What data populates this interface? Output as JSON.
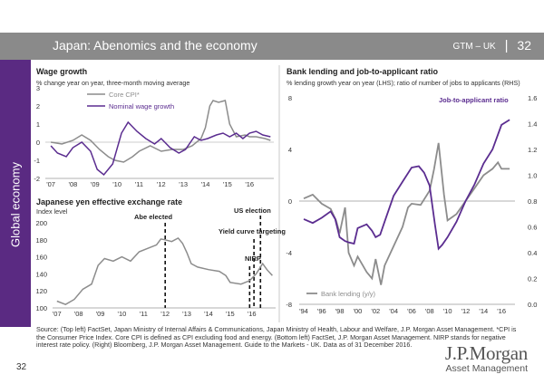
{
  "header": {
    "title": "Japan: Abenomics and the economy",
    "code": "GTM – UK",
    "separator": "|",
    "slide_number": "32"
  },
  "sidebar": {
    "label": "Global economy"
  },
  "footnote": "Source: (Top left) FactSet, Japan Ministry of Internal Affairs & Communications, Japan Ministry of Health, Labour and Welfare, J.P. Morgan Asset Management. *CPI is the Consumer Price Index. Core CPI is defined as CPI excluding food and energy. (Bottom left) FactSet, J.P. Morgan Asset Management. NIRP stands for negative interest rate policy. (Right) Bloomberg, J.P. Morgan Asset Management. Guide to the Markets - UK. Data as of 31 December 2016.",
  "page_number": "32",
  "logo": {
    "main": "J.P.Morgan",
    "sub": "Asset Management"
  },
  "colors": {
    "header": "#8a8a8a",
    "sidebar": "#5a2a82",
    "purple": "#5b2d90",
    "gray": "#8c8c8c"
  },
  "chart_data": [
    {
      "id": "wage",
      "type": "line",
      "title": "Wage growth",
      "subtitle": "% change year on year, three-month moving average",
      "xlim": [
        2006.75,
        2017.1
      ],
      "ylim": [
        -2,
        3
      ],
      "x_ticks": [
        2007,
        2008,
        2009,
        2010,
        2011,
        2012,
        2013,
        2014,
        2015,
        2016
      ],
      "x_tick_labels": [
        "'07",
        "'08",
        "'09",
        "'10",
        "'11",
        "'12",
        "'13",
        "'14",
        "'15",
        "'16"
      ],
      "y_ticks": [
        -2,
        -1,
        0,
        1,
        2,
        3
      ],
      "legend_position": "top-left",
      "series": [
        {
          "name": "Core CPI*",
          "color": "#8c8c8c",
          "x": [
            2007.0,
            2007.5,
            2008.0,
            2008.4,
            2008.8,
            2009.2,
            2009.6,
            2009.9,
            2010.3,
            2010.7,
            2011.0,
            2011.5,
            2012.0,
            2012.5,
            2013.0,
            2013.4,
            2013.8,
            2014.0,
            2014.2,
            2014.35,
            2014.6,
            2014.9,
            2015.1,
            2015.4,
            2015.8,
            2016.0,
            2016.3,
            2016.7,
            2016.95
          ],
          "y": [
            0.0,
            -0.1,
            0.1,
            0.4,
            0.1,
            -0.4,
            -0.8,
            -1.0,
            -1.1,
            -0.8,
            -0.5,
            -0.2,
            -0.5,
            -0.4,
            -0.4,
            -0.2,
            0.2,
            0.8,
            2.0,
            2.3,
            2.2,
            2.3,
            1.0,
            0.3,
            0.4,
            0.3,
            0.3,
            0.2,
            0.1
          ]
        },
        {
          "name": "Nominal wage growth",
          "color": "#5b2d90",
          "x": [
            2007.0,
            2007.3,
            2007.7,
            2008.0,
            2008.4,
            2008.8,
            2009.1,
            2009.4,
            2009.8,
            2010.2,
            2010.5,
            2010.9,
            2011.3,
            2011.7,
            2012.0,
            2012.4,
            2012.8,
            2013.1,
            2013.5,
            2013.8,
            2014.1,
            2014.5,
            2014.8,
            2015.1,
            2015.4,
            2015.7,
            2016.0,
            2016.3,
            2016.6,
            2016.95
          ],
          "y": [
            -0.2,
            -0.6,
            -0.8,
            -0.3,
            0.0,
            -0.5,
            -1.5,
            -1.8,
            -1.2,
            0.5,
            1.1,
            0.6,
            0.2,
            -0.1,
            0.2,
            -0.3,
            -0.6,
            -0.4,
            0.3,
            0.1,
            0.2,
            0.4,
            0.5,
            0.3,
            0.5,
            0.2,
            0.5,
            0.6,
            0.4,
            0.3
          ]
        }
      ]
    },
    {
      "id": "yen",
      "type": "line",
      "title": "Japanese yen effective exchange rate",
      "subtitle": "Index level",
      "xlim": [
        2006.8,
        2017.1
      ],
      "ylim": [
        100,
        200
      ],
      "x_ticks": [
        2007,
        2008,
        2009,
        2010,
        2011,
        2012,
        2013,
        2014,
        2015,
        2016
      ],
      "x_tick_labels": [
        "'07",
        "'08",
        "'09",
        "'10",
        "'11",
        "'12",
        "'13",
        "'14",
        "'15",
        "'16"
      ],
      "y_ticks": [
        100,
        120,
        140,
        160,
        180,
        200
      ],
      "annotations": [
        {
          "x": 2012.0,
          "label": "Abe elected"
        },
        {
          "x": 2016.1,
          "label": "Yield curve targeting"
        },
        {
          "x": 2016.4,
          "label": "US election"
        },
        {
          "x": 2015.9,
          "label": "NIRP"
        }
      ],
      "series": [
        {
          "name": "Japanese yen effective exchange rate",
          "color": "#8c8c8c",
          "x": [
            2007.0,
            2007.4,
            2007.8,
            2008.2,
            2008.6,
            2008.9,
            2009.2,
            2009.6,
            2010.0,
            2010.4,
            2010.8,
            2011.2,
            2011.6,
            2011.8,
            2012.0,
            2012.3,
            2012.6,
            2012.8,
            2013.0,
            2013.2,
            2013.5,
            2014.0,
            2014.5,
            2014.8,
            2015.0,
            2015.5,
            2015.9,
            2016.2,
            2016.5,
            2016.7,
            2016.95
          ],
          "y": [
            108,
            104,
            110,
            122,
            128,
            150,
            158,
            155,
            160,
            155,
            166,
            170,
            174,
            181,
            180,
            178,
            182,
            176,
            165,
            152,
            148,
            145,
            143,
            138,
            130,
            128,
            132,
            140,
            152,
            145,
            138
          ]
        }
      ]
    },
    {
      "id": "bank",
      "type": "line",
      "title": "Bank lending and job-to-applicant ratio",
      "subtitle": "% lending growth year on year (LHS); ratio of number of jobs to applicants (RHS)",
      "xlim": [
        1993.5,
        2017.5
      ],
      "ylim_left": [
        -8,
        8
      ],
      "ylim_right": [
        0.0,
        1.6
      ],
      "x_ticks": [
        1994,
        1996,
        1998,
        2000,
        2002,
        2004,
        2006,
        2008,
        2010,
        2012,
        2014,
        2016
      ],
      "x_tick_labels": [
        "'94",
        "'96",
        "'98",
        "'00",
        "'02",
        "'04",
        "'06",
        "'08",
        "'10",
        "'12",
        "'14",
        "'16"
      ],
      "y_ticks_left": [
        -8,
        -4,
        0,
        4,
        8
      ],
      "y_ticks_right": [
        0.0,
        0.2,
        0.4,
        0.6,
        0.8,
        1.0,
        1.2,
        1.4,
        1.6
      ],
      "series": [
        {
          "name": "Bank lending (y/y)",
          "axis": "left",
          "color": "#8c8c8c",
          "x": [
            1994.0,
            1995.0,
            1996.0,
            1997.0,
            1997.6,
            1998.0,
            1998.6,
            1999.0,
            1999.6,
            2000.0,
            2001.0,
            2001.6,
            2002.0,
            2002.6,
            2003.0,
            2004.0,
            2005.0,
            2005.6,
            2006.0,
            2007.0,
            2008.0,
            2008.5,
            2009.0,
            2009.3,
            2009.6,
            2010.0,
            2011.0,
            2012.0,
            2013.0,
            2014.0,
            2015.0,
            2015.6,
            2016.0,
            2016.9
          ],
          "y": [
            0.2,
            0.5,
            -0.2,
            -0.6,
            -1.5,
            -2.5,
            -0.5,
            -4.0,
            -5.0,
            -4.3,
            -5.5,
            -6.0,
            -4.5,
            -6.5,
            -5.0,
            -3.5,
            -2.0,
            -0.5,
            -0.2,
            -0.3,
            0.8,
            2.5,
            4.5,
            2.5,
            0.5,
            -1.5,
            -1.0,
            0.0,
            1.0,
            2.0,
            2.5,
            3.0,
            2.5,
            2.5
          ]
        },
        {
          "name": "Job-to-applicant ratio",
          "axis": "right",
          "color": "#5b2d90",
          "x": [
            1994.0,
            1995.0,
            1996.0,
            1997.0,
            1997.5,
            1998.0,
            1998.6,
            1999.0,
            1999.6,
            2000.0,
            2001.0,
            2001.6,
            2002.0,
            2002.5,
            2003.0,
            2004.0,
            2005.0,
            2006.0,
            2006.8,
            2007.4,
            2008.0,
            2008.6,
            2009.0,
            2009.4,
            2010.0,
            2011.0,
            2012.0,
            2013.0,
            2014.0,
            2015.0,
            2016.0,
            2016.9
          ],
          "y": [
            0.66,
            0.63,
            0.67,
            0.72,
            0.66,
            0.52,
            0.49,
            0.48,
            0.47,
            0.59,
            0.62,
            0.57,
            0.52,
            0.54,
            0.64,
            0.84,
            0.95,
            1.06,
            1.07,
            1.02,
            0.92,
            0.62,
            0.43,
            0.46,
            0.52,
            0.64,
            0.8,
            0.93,
            1.09,
            1.2,
            1.39,
            1.43
          ]
        }
      ]
    }
  ]
}
